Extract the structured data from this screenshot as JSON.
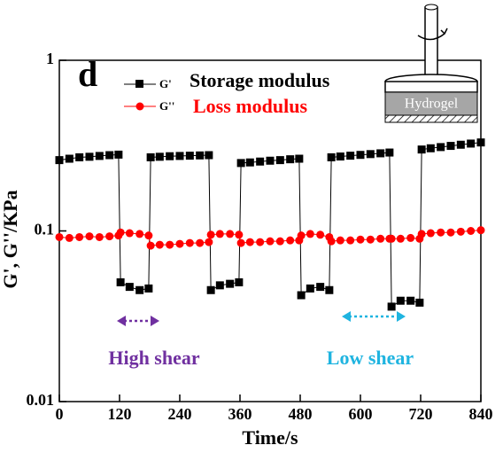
{
  "chart_data": {
    "type": "line",
    "panel_label": "d",
    "xlabel": "Time/s",
    "ylabel": "G', G''/KPa",
    "log_y": true,
    "xlim": [
      0,
      840
    ],
    "ylim": [
      0.01,
      1
    ],
    "xticks": [
      0,
      120,
      240,
      360,
      480,
      600,
      720,
      840
    ],
    "yticks": [
      0.01,
      0.1,
      1
    ],
    "x": [
      0,
      20,
      40,
      60,
      80,
      100,
      118,
      122,
      140,
      160,
      178,
      182,
      200,
      220,
      240,
      260,
      280,
      298,
      302,
      320,
      340,
      358,
      362,
      380,
      400,
      420,
      440,
      460,
      478,
      482,
      500,
      520,
      538,
      542,
      560,
      580,
      600,
      620,
      640,
      658,
      662,
      680,
      700,
      718,
      722,
      740,
      760,
      780,
      800,
      820,
      840
    ],
    "series": [
      {
        "name": "G'",
        "description": "Storage modulus",
        "color": "#000000",
        "marker": "square",
        "values": [
          0.26,
          0.265,
          0.27,
          0.272,
          0.275,
          0.278,
          0.28,
          0.05,
          0.047,
          0.045,
          0.046,
          0.27,
          0.272,
          0.274,
          0.275,
          0.276,
          0.277,
          0.278,
          0.045,
          0.048,
          0.049,
          0.05,
          0.25,
          0.252,
          0.255,
          0.258,
          0.26,
          0.263,
          0.265,
          0.042,
          0.046,
          0.047,
          0.045,
          0.27,
          0.273,
          0.276,
          0.279,
          0.282,
          0.285,
          0.288,
          0.036,
          0.039,
          0.039,
          0.038,
          0.3,
          0.305,
          0.31,
          0.315,
          0.32,
          0.325,
          0.33
        ]
      },
      {
        "name": "G''",
        "description": "Loss modulus",
        "color": "#ff0000",
        "marker": "circle",
        "values": [
          0.092,
          0.091,
          0.092,
          0.093,
          0.092,
          0.093,
          0.094,
          0.098,
          0.097,
          0.096,
          0.094,
          0.082,
          0.083,
          0.083,
          0.084,
          0.085,
          0.085,
          0.086,
          0.095,
          0.096,
          0.096,
          0.095,
          0.085,
          0.086,
          0.086,
          0.087,
          0.087,
          0.088,
          0.088,
          0.094,
          0.096,
          0.095,
          0.092,
          0.087,
          0.088,
          0.088,
          0.089,
          0.089,
          0.09,
          0.09,
          0.09,
          0.09,
          0.091,
          0.09,
          0.096,
          0.097,
          0.098,
          0.098,
          0.099,
          0.1,
          0.101
        ]
      }
    ],
    "annotations": [
      {
        "text": "High shear",
        "color": "#7030a0"
      },
      {
        "text": "Low shear",
        "color": "#1fb4e0"
      }
    ],
    "inset_label": "Hydrogel"
  }
}
